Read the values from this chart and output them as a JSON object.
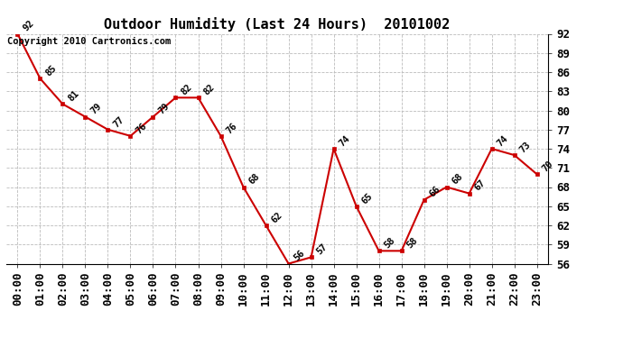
{
  "title": "Outdoor Humidity (Last 24 Hours)  20101002",
  "copyright": "Copyright 2010 Cartronics.com",
  "hours": [
    "00:00",
    "01:00",
    "02:00",
    "03:00",
    "04:00",
    "05:00",
    "06:00",
    "07:00",
    "08:00",
    "09:00",
    "10:00",
    "11:00",
    "12:00",
    "13:00",
    "14:00",
    "15:00",
    "16:00",
    "17:00",
    "18:00",
    "19:00",
    "20:00",
    "21:00",
    "22:00",
    "23:00"
  ],
  "values": [
    92,
    85,
    81,
    79,
    77,
    76,
    79,
    82,
    82,
    76,
    68,
    62,
    56,
    57,
    74,
    65,
    58,
    58,
    66,
    68,
    67,
    74,
    73,
    70
  ],
  "ylim": [
    56.0,
    92.0
  ],
  "yticks": [
    56.0,
    59.0,
    62.0,
    65.0,
    68.0,
    71.0,
    74.0,
    77.0,
    80.0,
    83.0,
    86.0,
    89.0,
    92.0
  ],
  "line_color": "#cc0000",
  "marker_color": "#cc0000",
  "background_color": "#ffffff",
  "grid_color": "#bbbbbb",
  "title_fontsize": 11,
  "label_fontsize": 7.5,
  "tick_fontsize": 9,
  "copyright_fontsize": 7.5
}
